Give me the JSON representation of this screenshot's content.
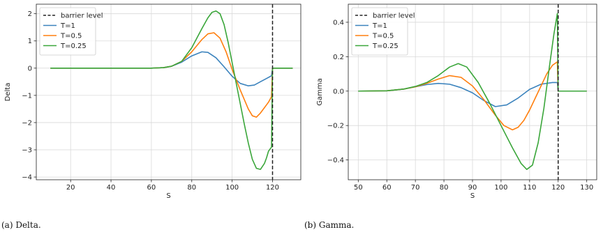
{
  "captions": [
    "(a) Delta.",
    "(b) Gamma."
  ],
  "colors": {
    "T=1": "#3b83bd",
    "T=0.5": "#ff7f0e",
    "T=0.25": "#3aa63a",
    "barrier": "#222222",
    "grid": "#d9d9d9"
  },
  "chart_data": [
    {
      "type": "line",
      "title": "",
      "xlabel": "S",
      "ylabel": "Delta",
      "xlim": [
        3,
        134
      ],
      "ylim": [
        -4.1,
        2.35
      ],
      "xticks": [
        20,
        40,
        60,
        80,
        100,
        120
      ],
      "yticks": [
        -4,
        -3,
        -2,
        -1,
        0,
        1,
        2
      ],
      "grid": true,
      "legend": "upper-left",
      "barrier_level": 120,
      "barrier_label": "barrier level",
      "series": [
        {
          "name": "T=1",
          "color": "#3b83bd",
          "x": [
            10,
            60,
            66,
            70,
            75,
            80,
            85,
            88,
            92,
            96,
            100,
            104,
            108,
            111,
            114,
            117,
            119.5,
            120,
            130
          ],
          "y": [
            0,
            0,
            0.02,
            0.07,
            0.22,
            0.45,
            0.6,
            0.58,
            0.38,
            0.05,
            -0.3,
            -0.56,
            -0.65,
            -0.62,
            -0.5,
            -0.38,
            -0.28,
            0,
            0
          ]
        },
        {
          "name": "T=0.5",
          "color": "#ff7f0e",
          "x": [
            10,
            60,
            66,
            70,
            75,
            80,
            85,
            88,
            91,
            94,
            97,
            100,
            104,
            108,
            110,
            112,
            114,
            116,
            118,
            119.5,
            120,
            130
          ],
          "y": [
            0,
            0,
            0.02,
            0.07,
            0.25,
            0.6,
            1.05,
            1.26,
            1.3,
            1.1,
            0.6,
            -0.05,
            -0.8,
            -1.5,
            -1.75,
            -1.8,
            -1.65,
            -1.45,
            -1.25,
            -1.05,
            0,
            0
          ]
        },
        {
          "name": "T=0.25",
          "color": "#3aa63a",
          "x": [
            10,
            60,
            66,
            70,
            75,
            80,
            85,
            88,
            90,
            92,
            94,
            96,
            98,
            100,
            102,
            104,
            106,
            108,
            110,
            112,
            114,
            116,
            117,
            118,
            119,
            119.5,
            120,
            130
          ],
          "y": [
            0,
            0,
            0.02,
            0.07,
            0.25,
            0.75,
            1.45,
            1.85,
            2.05,
            2.1,
            2.0,
            1.6,
            0.95,
            0.2,
            -0.55,
            -1.3,
            -2.05,
            -2.75,
            -3.35,
            -3.68,
            -3.72,
            -3.5,
            -3.3,
            -3.05,
            -2.95,
            -2.9,
            0,
            0
          ]
        }
      ]
    },
    {
      "type": "line",
      "title": "",
      "xlabel": "S",
      "ylabel": "Gamma",
      "xlim": [
        46.5,
        133.5
      ],
      "ylim": [
        -0.515,
        0.505
      ],
      "xticks": [
        50,
        60,
        70,
        80,
        90,
        100,
        110,
        120,
        130
      ],
      "yticks": [
        -0.4,
        -0.2,
        0.0,
        0.2,
        0.4
      ],
      "ytick_labels": [
        "−0.4",
        "−0.2",
        "0.0",
        "0.2",
        "0.4"
      ],
      "grid": true,
      "legend": "upper-left",
      "barrier_level": 120,
      "barrier_label": "barrier level",
      "series": [
        {
          "name": "T=1",
          "color": "#3b83bd",
          "x": [
            50,
            60,
            66,
            70,
            74,
            78,
            82,
            86,
            90,
            94,
            98,
            102,
            106,
            110,
            114,
            118,
            119.7,
            120,
            130
          ],
          "y": [
            0,
            0.002,
            0.012,
            0.025,
            0.038,
            0.045,
            0.04,
            0.02,
            -0.01,
            -0.055,
            -0.09,
            -0.08,
            -0.04,
            0.01,
            0.04,
            0.05,
            0.05,
            0,
            0
          ]
        },
        {
          "name": "T=0.5",
          "color": "#ff7f0e",
          "x": [
            50,
            60,
            66,
            70,
            74,
            78,
            82,
            86,
            90,
            94,
            98,
            101,
            104,
            106,
            108,
            110,
            112,
            114,
            116,
            118,
            119.7,
            120,
            130
          ],
          "y": [
            0,
            0.002,
            0.012,
            0.025,
            0.045,
            0.07,
            0.09,
            0.08,
            0.03,
            -0.05,
            -0.14,
            -0.2,
            -0.225,
            -0.21,
            -0.17,
            -0.11,
            -0.04,
            0.03,
            0.1,
            0.15,
            0.17,
            0,
            0
          ]
        },
        {
          "name": "T=0.25",
          "color": "#3aa63a",
          "x": [
            50,
            60,
            66,
            70,
            74,
            78,
            82,
            85,
            88,
            92,
            96,
            100,
            104,
            107,
            109,
            111,
            113,
            115,
            117,
            118.5,
            119.7,
            120,
            130
          ],
          "y": [
            0,
            0.002,
            0.012,
            0.027,
            0.05,
            0.09,
            0.14,
            0.16,
            0.14,
            0.05,
            -0.07,
            -0.2,
            -0.33,
            -0.42,
            -0.455,
            -0.43,
            -0.3,
            -0.1,
            0.15,
            0.33,
            0.45,
            0,
            0
          ]
        }
      ]
    }
  ]
}
